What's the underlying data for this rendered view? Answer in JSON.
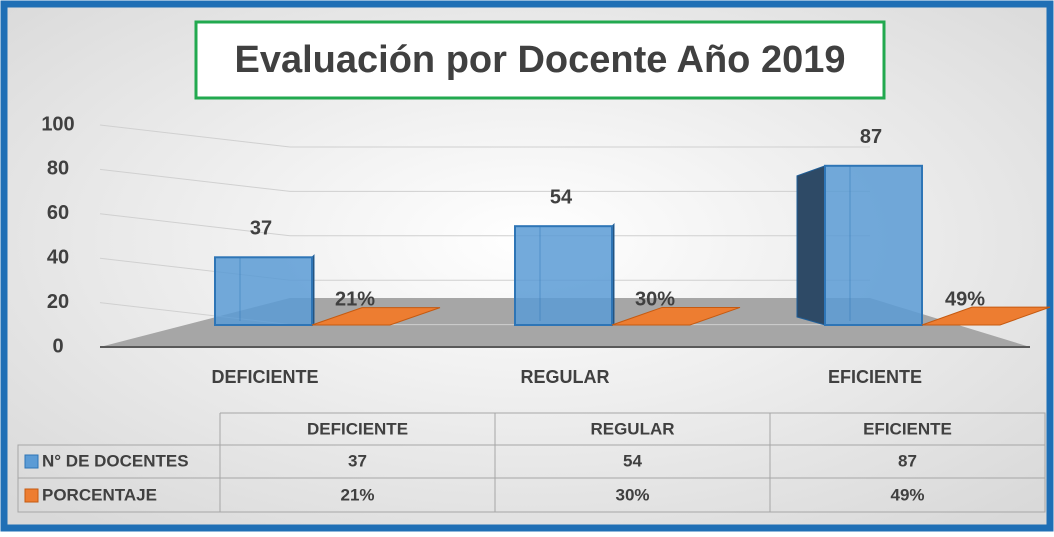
{
  "chart_data": {
    "type": "bar3d",
    "title": "Evaluación por Docente Año 2019",
    "categories": [
      "DEFICIENTE",
      "REGULAR",
      "EFICIENTE"
    ],
    "series": [
      {
        "name": "N° DE DOCENTES",
        "color": "#5b9bd5",
        "values": [
          37,
          54,
          87
        ]
      },
      {
        "name": "PORCENTAJE",
        "color": "#ed7d31",
        "values": [
          0.21,
          0.3,
          0.49
        ],
        "value_labels": [
          "21%",
          "30%",
          "49%"
        ]
      }
    ],
    "ylim": [
      0,
      100
    ],
    "yticks": [
      0,
      20,
      40,
      60,
      80,
      100
    ],
    "grid": true,
    "data_table": true
  }
}
